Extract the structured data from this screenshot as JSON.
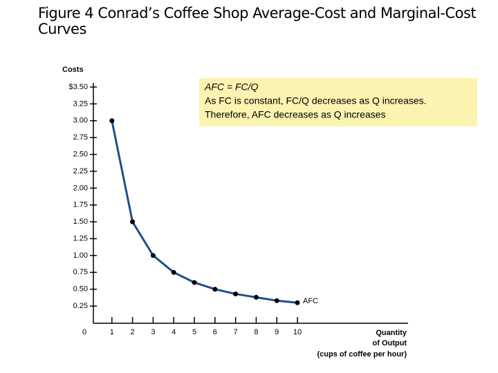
{
  "chart_data": {
    "type": "line",
    "title": "Figure 4 Conrad’s Coffee Shop Average-Cost and Marginal-Cost Curves",
    "y_label": "Costs",
    "x_label": [
      "Quantity",
      "of Output",
      "(cups of coffee per hour)"
    ],
    "annotation": [
      "AFC = FC/Q",
      "As FC is constant, FC/Q decreases as Q increases.",
      "Therefore, AFC decreases as Q increases"
    ],
    "x": [
      1,
      2,
      3,
      4,
      5,
      6,
      7,
      8,
      9,
      10
    ],
    "series": [
      {
        "name": "AFC",
        "color": "#1f4e8c",
        "values": [
          3,
          1.5,
          1,
          0.75,
          0.6,
          0.5,
          0.43,
          0.38,
          0.33,
          0.3
        ]
      }
    ],
    "xlim": [
      0,
      15
    ],
    "xticks": [
      0,
      1,
      2,
      3,
      4,
      5,
      6,
      7,
      8,
      9,
      10
    ],
    "ylim": [
      0,
      3.5
    ],
    "yticks": [
      0.25,
      {
        "value": 0.5,
        "label": "0.50"
      },
      0.75,
      {
        "value": 1,
        "label": "1.00"
      },
      1.25,
      {
        "value": 1.5,
        "label": "1.50"
      },
      1.75,
      {
        "value": 2,
        "label": "2.00"
      },
      2.25,
      {
        "value": 2.5,
        "label": "2.50"
      },
      2.75,
      {
        "value": 3,
        "label": "3.00"
      },
      3.25,
      {
        "value": 3.5,
        "label": "$3.50"
      }
    ],
    "grid": false
  }
}
